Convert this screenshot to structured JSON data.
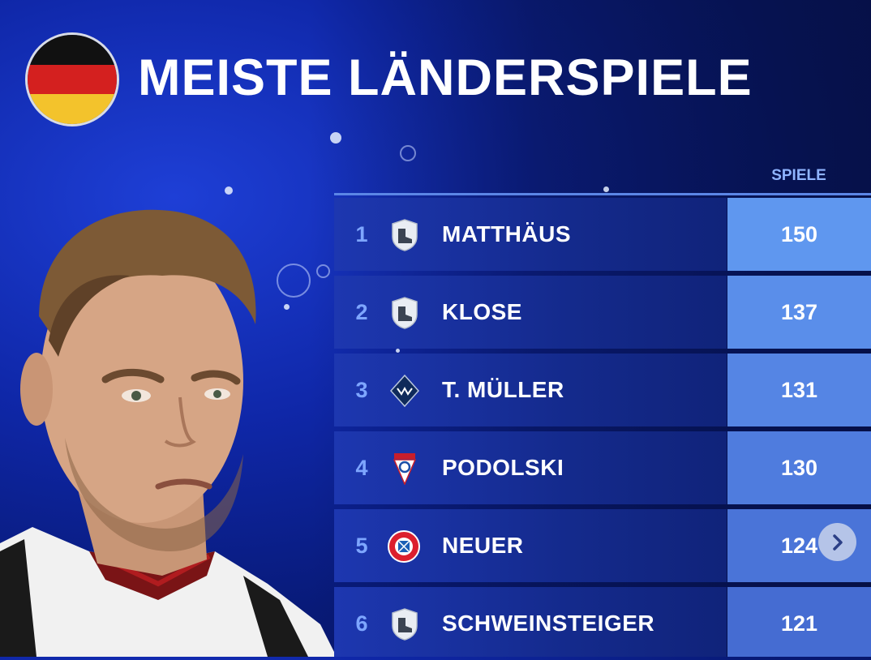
{
  "title": "MEISTE LÄNDERSPIELE",
  "column_header": "SPIELE",
  "colors": {
    "accent": "#5b86e6",
    "rank_text": "#7ea6ff",
    "value_cells": [
      "#5f97ef",
      "#5a8eea",
      "#5585e4",
      "#4f7cde",
      "#4a74d8",
      "#456cd2"
    ]
  },
  "rows": [
    {
      "rank": "1",
      "name": "MATTHÄUS",
      "value": "150",
      "crest": "retired-boot-crest-icon"
    },
    {
      "rank": "2",
      "name": "KLOSE",
      "value": "137",
      "crest": "retired-boot-crest-icon"
    },
    {
      "rank": "3",
      "name": "T. MÜLLER",
      "value": "131",
      "crest": "whitecaps-crest-icon"
    },
    {
      "rank": "4",
      "name": "PODOLSKI",
      "value": "130",
      "crest": "gornik-zabrze-crest-icon"
    },
    {
      "rank": "5",
      "name": "NEUER",
      "value": "124",
      "crest": "fc-bayern-crest-icon"
    },
    {
      "rank": "6",
      "name": "SCHWEINSTEIGER",
      "value": "121",
      "crest": "retired-boot-crest-icon"
    }
  ],
  "next_button_icon": "chevron-right-icon"
}
